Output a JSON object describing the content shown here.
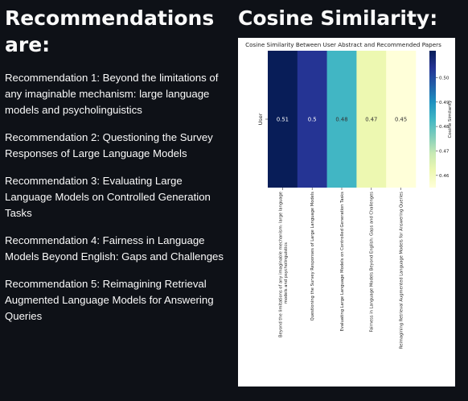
{
  "left": {
    "heading": "Recommendations are:",
    "recommendations": [
      "Recommendation 1: Beyond the limitations of any imaginable mechanism: large language models and psycholinguistics",
      "Recommendation 2: Questioning the Survey Responses of Large Language Models",
      "Recommendation 3: Evaluating Large Language Models on Controlled Generation Tasks",
      "Recommendation 4: Fairness in Language Models Beyond English: Gaps and Challenges",
      "Recommendation 5: Reimagining Retrieval Augmented Language Models for Answering Queries"
    ]
  },
  "right": {
    "heading": "Cosine Similarity:"
  },
  "chart_data": {
    "type": "heatmap",
    "title": "Cosine Similarity Between User Abstract and Recommended Papers",
    "row_labels": [
      "User"
    ],
    "column_labels": [
      "Beyond the limitations of any imaginable mechanism: large language models and psycholinguistics",
      "Questioning the Survey Responses of Large Language Models",
      "Evaluating Large Language Models on Controlled Generation Tasks",
      "Fairness in Language Models Beyond English: Gaps and Challenges",
      "Reimagining Retrieval Augmented Language Models for Answering Queries"
    ],
    "values": [
      [
        0.51,
        0.5,
        0.48,
        0.47,
        0.45
      ]
    ],
    "cell_labels": [
      "0.51",
      "0.5",
      "0.48",
      "0.47",
      "0.45"
    ],
    "colormap": "YlGnBu",
    "cell_colors": [
      "#081d58",
      "#253494",
      "#41b6c4",
      "#edf8b1",
      "#ffffd9"
    ],
    "colorbar": {
      "label": "Cosine Similarity",
      "range": [
        0.455,
        0.511
      ],
      "ticks": [
        0.5,
        0.49,
        0.48,
        0.47,
        0.46
      ],
      "tick_labels": [
        "0.50",
        "0.49",
        "0.48",
        "0.47",
        "0.46"
      ],
      "gradient": [
        "#ffffd9",
        "#edf8b1",
        "#c7e9b4",
        "#7fcdbb",
        "#41b6c4",
        "#1d91c0",
        "#225ea8",
        "#253494",
        "#081d58"
      ]
    }
  }
}
